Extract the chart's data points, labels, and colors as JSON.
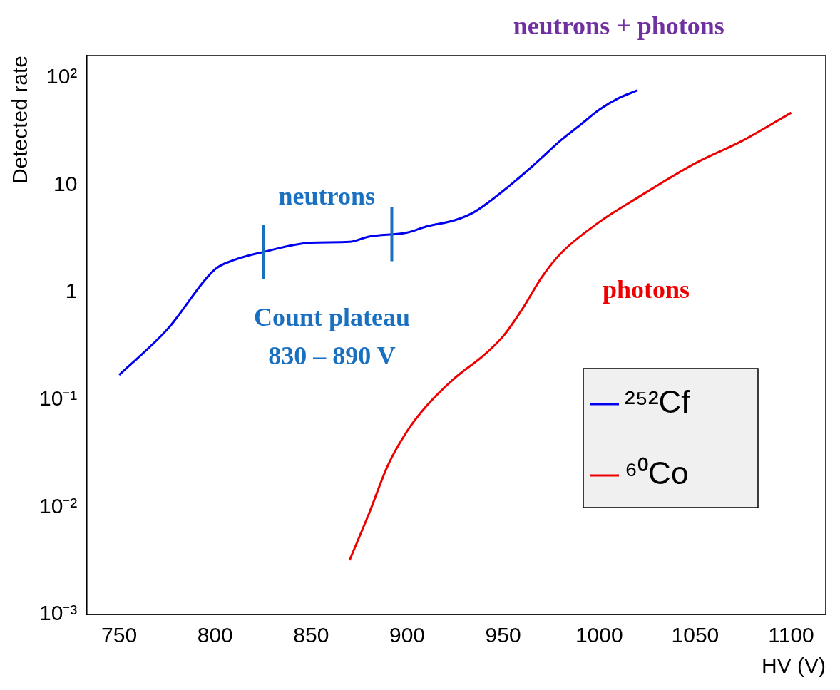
{
  "chart_data": {
    "type": "line",
    "xlabel": "HV (V)",
    "ylabel": "Detected rate",
    "log": "y",
    "grid": false,
    "legend": "bottom right",
    "marker": "none",
    "line_style": "solid",
    "xlim": [
      733,
      1118
    ],
    "xticks": [
      750,
      800,
      850,
      900,
      950,
      1000,
      1050,
      1100
    ],
    "ylim": [
      0.001,
      160
    ],
    "yticks": [
      {
        "value": 0.001,
        "label": "10⁻³"
      },
      {
        "value": 0.01,
        "label": "10⁻²"
      },
      {
        "value": 0.1,
        "label": "10⁻¹"
      },
      1,
      10,
      {
        "value": 100,
        "label": "10²"
      }
    ],
    "series": [
      {
        "name": "²⁵²Cf",
        "color": "#0000ee",
        "x": [
          750,
          775,
          800,
          810,
          825,
          850,
          870,
          880,
          900,
          910,
          925,
          935,
          950,
          965,
          980,
          990,
          1000,
          1010,
          1020
        ],
        "values": [
          0.17,
          0.45,
          1.64,
          2.0,
          2.37,
          2.9,
          2.95,
          3.3,
          3.6,
          4.1,
          4.7,
          5.6,
          8.8,
          14.8,
          26,
          36,
          50,
          64,
          76
        ]
      },
      {
        "name": "⁶⁰Co",
        "color": "#ee0000",
        "x": [
          870,
          880,
          890,
          900,
          910,
          925,
          940,
          950,
          960,
          970,
          980,
          1000,
          1020,
          1050,
          1075,
          1100
        ],
        "values": [
          0.0032,
          0.0086,
          0.0245,
          0.051,
          0.087,
          0.16,
          0.26,
          0.39,
          0.7,
          1.37,
          2.3,
          4.5,
          7.6,
          15.9,
          26,
          47
        ]
      }
    ],
    "ref_lines": [
      {
        "axis": "x",
        "value": 825,
        "color": "#1a70c0"
      },
      {
        "axis": "x",
        "value": 892,
        "color": "#1a70c0"
      }
    ],
    "annotations": [
      "neutrons",
      "Count plateau",
      "830 – 890 V",
      "photons",
      "neutrons + photons"
    ]
  }
}
